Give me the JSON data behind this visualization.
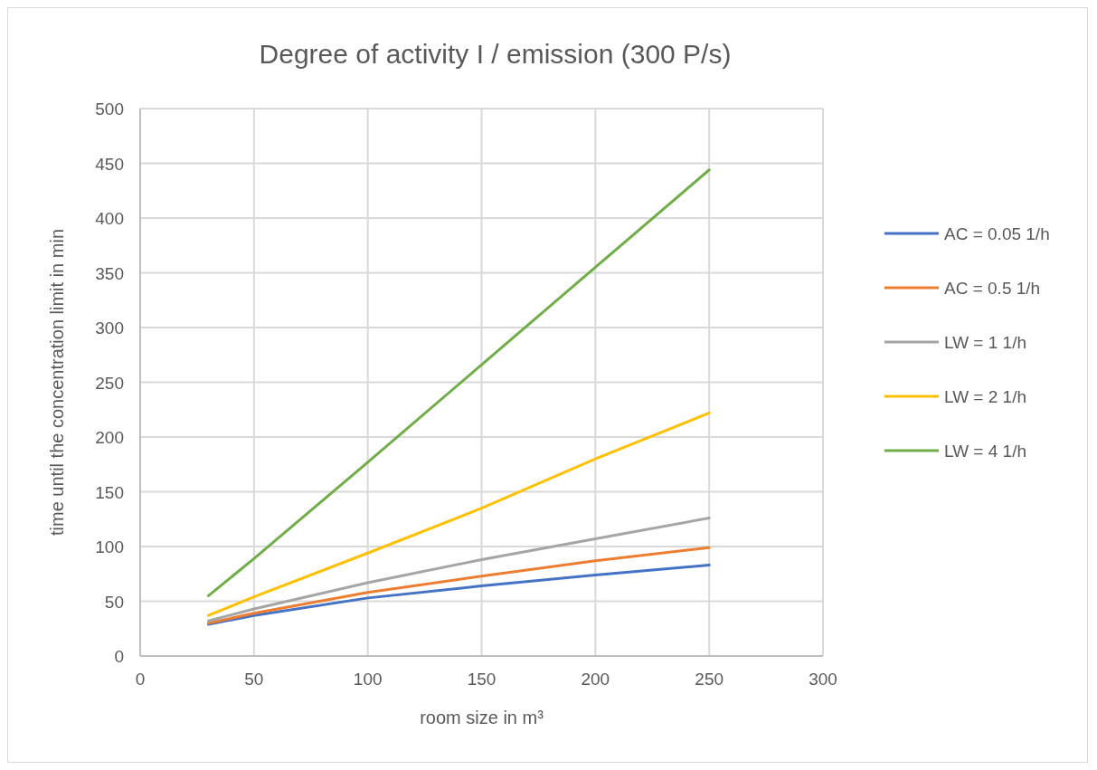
{
  "chart_data": {
    "type": "line",
    "title": "Degree of activity I  /  emission  (300 P/s)",
    "xlabel": "room size in m³",
    "ylabel": "time until the concentration limit in min",
    "x": [
      30,
      50,
      100,
      150,
      200,
      250
    ],
    "series": [
      {
        "name": "AC = 0.05 1/h",
        "color": "#4472c4",
        "values": [
          29,
          37,
          53,
          64,
          74,
          83
        ]
      },
      {
        "name": "AC = 0.5 1/h",
        "color": "#ed7d31",
        "values": [
          30,
          39,
          58,
          73,
          87,
          99
        ]
      },
      {
        "name": "LW = 1 1/h",
        "color": "#a5a5a5",
        "values": [
          32,
          43,
          67,
          88,
          107,
          126
        ]
      },
      {
        "name": "LW = 2 1/h",
        "color": "#ffc000",
        "values": [
          37,
          54,
          94,
          135,
          180,
          222
        ]
      },
      {
        "name": "LW = 4 1/h",
        "color": "#70ad47",
        "values": [
          55,
          89,
          177,
          266,
          355,
          444
        ]
      }
    ],
    "xlim": [
      0,
      300
    ],
    "xticks": [
      0,
      50,
      100,
      150,
      200,
      250,
      300
    ],
    "ylim": [
      0,
      500
    ],
    "yticks": [
      0,
      50,
      100,
      150,
      200,
      250,
      300,
      350,
      400,
      450,
      500
    ],
    "grid": true,
    "legend": "right",
    "marker": "none",
    "line_style": "solid"
  }
}
